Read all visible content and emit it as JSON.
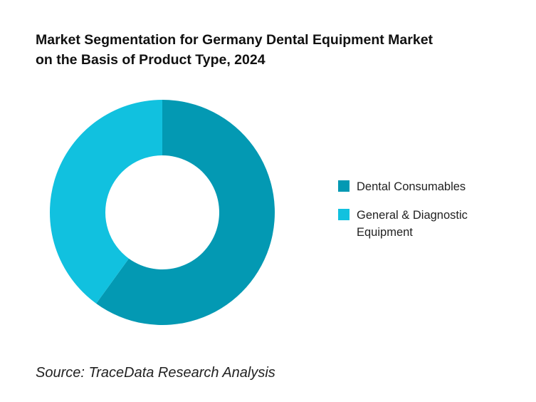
{
  "title_lines": [
    "Market Segmentation for Germany Dental Equipment Market",
    "on the Basis of Product Type, 2024"
  ],
  "source": "Source: TraceData Research Analysis",
  "chart_data": {
    "type": "pie",
    "variant": "donut",
    "title": "Market Segmentation for Germany Dental Equipment Market on the Basis of Product Type, 2024",
    "legend_position": "right",
    "categories": [
      "Dental Consumables",
      "General & Diagnostic Equipment"
    ],
    "values": [
      60,
      40
    ],
    "colors": [
      "#0399B3",
      "#11C1DF"
    ]
  }
}
